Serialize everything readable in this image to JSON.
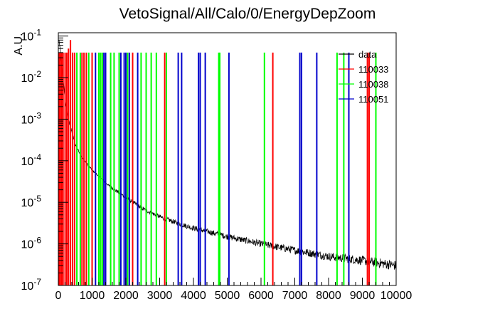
{
  "chart_data": {
    "type": "line",
    "title": "VetoSignal/All/Calo/0/EnergyDepZoom",
    "xlabel": "",
    "ylabel": "A.U.",
    "xlim": [
      0,
      10000
    ],
    "ylim": [
      1e-07,
      0.12
    ],
    "log_y": true,
    "grid": false,
    "legend_position": "top-right",
    "x_ticks": [
      "0",
      "1000",
      "2000",
      "3000",
      "4000",
      "5000",
      "6000",
      "7000",
      "8000",
      "9000",
      "10000"
    ],
    "y_ticks": [
      {
        "mant": "10",
        "exp": "-1"
      },
      {
        "mant": "10",
        "exp": "-2"
      },
      {
        "mant": "10",
        "exp": "-3"
      },
      {
        "mant": "10",
        "exp": "-4"
      },
      {
        "mant": "10",
        "exp": "-5"
      },
      {
        "mant": "10",
        "exp": "-6"
      },
      {
        "mant": "10",
        "exp": "-7"
      }
    ],
    "series": [
      {
        "name": "data",
        "color": "#000000",
        "style": "continuum",
        "x": [
          20,
          50,
          100,
          150,
          200,
          300,
          400,
          500,
          700,
          1000,
          1500,
          2000,
          2500,
          3000,
          3500,
          4000,
          5000,
          6000,
          7000,
          8000,
          9000,
          10000
        ],
        "y": [
          0.08,
          0.05,
          0.02,
          0.008,
          0.003,
          0.001,
          0.0005,
          0.00025,
          0.00012,
          6e-05,
          2.5e-05,
          1.3e-05,
          7e-06,
          4.5e-06,
          3.2e-06,
          2.4e-06,
          1.5e-06,
          1e-06,
          7e-07,
          5e-07,
          4e-07,
          3e-07
        ]
      },
      {
        "name": "110033",
        "color": "#ff0000",
        "style": "spikes",
        "x": [
          30,
          60,
          100,
          140,
          200,
          250,
          300,
          360,
          420,
          480,
          700,
          760,
          830,
          1000,
          2200,
          3150,
          6350,
          9150,
          9200
        ],
        "y": [
          0.04,
          0.04,
          0.04,
          0.04,
          0.04,
          0.04,
          0.05,
          0.08,
          0.04,
          0.04,
          0.04,
          0.04,
          0.04,
          0.04,
          0.04,
          0.04,
          0.04,
          0.04,
          0.04
        ]
      },
      {
        "name": "110038",
        "color": "#00ff00",
        "style": "spikes",
        "x": [
          550,
          650,
          900,
          1200,
          1250,
          1300,
          1550,
          1650,
          1800,
          2050,
          2450,
          2600,
          2750,
          2900,
          3200,
          4750,
          4780,
          6100,
          8250,
          8450,
          9400
        ],
        "y": [
          0.04,
          0.04,
          0.04,
          0.04,
          0.04,
          0.04,
          0.04,
          0.04,
          0.04,
          0.04,
          0.04,
          0.04,
          0.04,
          0.04,
          0.04,
          0.04,
          0.04,
          0.04,
          0.04,
          0.04,
          0.04
        ]
      },
      {
        "name": "110051",
        "color": "#0000cc",
        "style": "spikes",
        "x": [
          1100,
          1350,
          1400,
          1850,
          1950,
          2000,
          2100,
          2350,
          3550,
          3650,
          4150,
          4200,
          4350,
          5050,
          7150,
          7200,
          7650,
          8600
        ],
        "y": [
          0.04,
          0.04,
          0.04,
          0.04,
          0.04,
          0.04,
          0.04,
          0.04,
          0.04,
          0.04,
          0.04,
          0.04,
          0.04,
          0.04,
          0.04,
          0.04,
          0.04,
          0.04
        ]
      }
    ]
  }
}
